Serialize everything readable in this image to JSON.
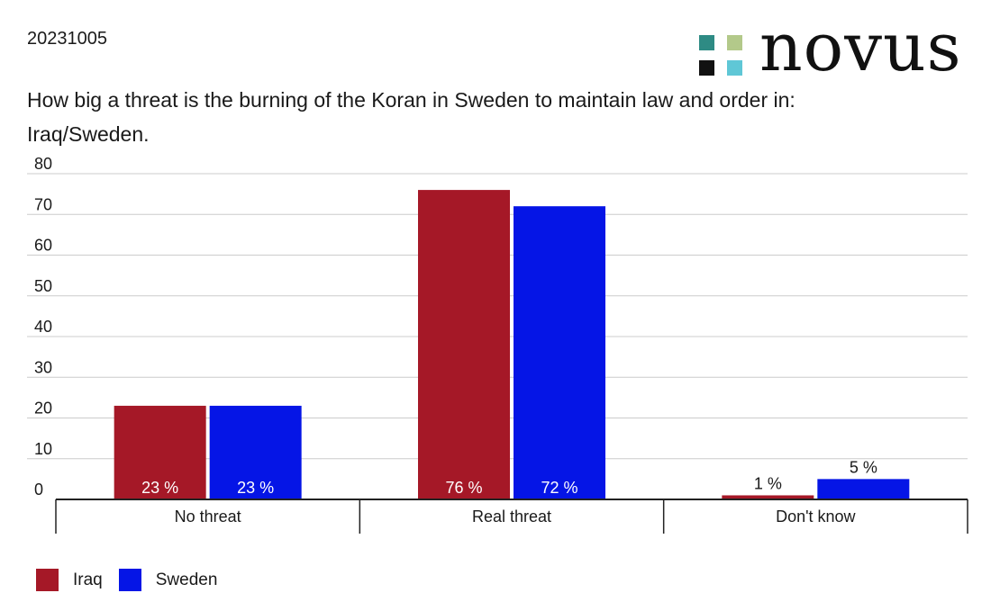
{
  "header": {
    "date": "20231005",
    "logo_text": "novus",
    "logo_colors": [
      "#2e8b84",
      "#b3c98a",
      "#111111",
      "#5fc7d6"
    ],
    "title": "How big a threat is the burning of the Koran in Sweden to maintain law and order in: Iraq/Sweden."
  },
  "colors": {
    "Iraq": "#a51827",
    "Sweden": "#0515e6",
    "grid": "#cccccc",
    "axis": "#222222"
  },
  "chart_data": {
    "type": "bar",
    "categories": [
      "No threat",
      "Real threat",
      "Don't know"
    ],
    "series": [
      {
        "name": "Iraq",
        "values": [
          23,
          76,
          1
        ],
        "labels": [
          "23 %",
          "76 %",
          "1 %"
        ]
      },
      {
        "name": "Sweden",
        "values": [
          23,
          72,
          5
        ],
        "labels": [
          "23 %",
          "72 %",
          "5 %"
        ]
      }
    ],
    "ylim": [
      0,
      80
    ],
    "yticks": [
      0,
      10,
      20,
      30,
      40,
      50,
      60,
      70,
      80
    ],
    "grid": true,
    "legend": "bottom-left",
    "xlabel": "",
    "ylabel": ""
  }
}
